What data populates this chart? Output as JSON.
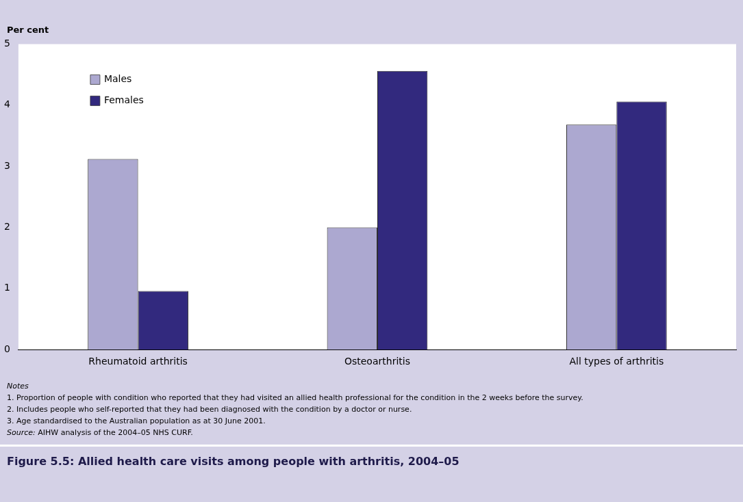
{
  "chart_data": {
    "type": "bar",
    "title": "Figure 5.5: Allied health care visits among people with arthritis, 2004–05",
    "ylabel": "Per cent",
    "categories": [
      "Rheumatoid arthritis",
      "Osteoarthritis",
      "All types of arthritis"
    ],
    "series": [
      {
        "name": "Males",
        "color": "#aca8d0",
        "values": [
          3.12,
          2.0,
          3.68
        ]
      },
      {
        "name": "Females",
        "color": "#32297e",
        "values": [
          0.96,
          4.56,
          4.06
        ]
      }
    ],
    "ylim": [
      0,
      5
    ],
    "yticks": [
      0,
      1,
      2,
      3,
      4,
      5
    ],
    "grid": false,
    "legend": "top left",
    "annotations": [
      "Notes",
      "1.   Proportion of people with condition who reported that they had visited an allied health professional for the condition in the 2 weeks before the survey.",
      "2.   Includes people who self-reported that they had been diagnosed with the condition by a doctor or nurse.",
      "3.   Age standardised to the Australian population as at 30 June 2001.",
      "Source: AIHW analysis of the 2004–05 NHS CURF."
    ]
  }
}
